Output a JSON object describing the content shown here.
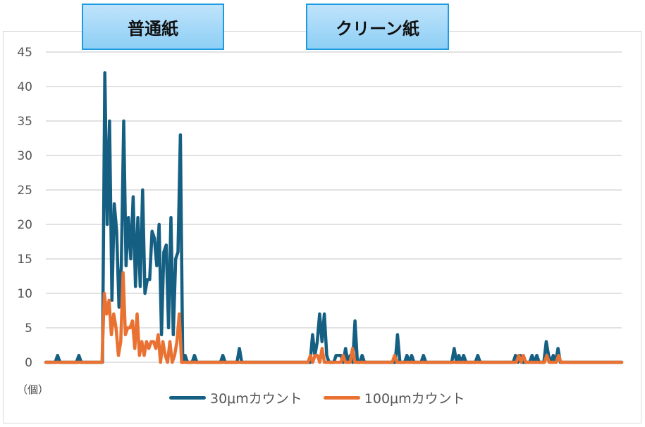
{
  "chart_data": {
    "type": "line",
    "ylabel": "（個）",
    "ylim": [
      0,
      45
    ],
    "yticks": [
      0,
      5,
      10,
      15,
      20,
      25,
      30,
      35,
      40,
      45
    ],
    "grid": true,
    "legend_position": "bottom",
    "section_labels": [
      "普通紙",
      "クリーン紙"
    ],
    "series": [
      {
        "name": "30μmカウント",
        "color": "#155f82",
        "values": [
          0,
          0,
          0,
          0,
          0,
          1,
          0,
          0,
          0,
          0,
          0,
          0,
          0,
          0,
          1,
          0,
          0,
          0,
          0,
          0,
          0,
          0,
          0,
          0,
          0,
          42,
          20,
          35,
          9,
          23,
          19,
          8,
          14,
          35,
          14,
          21,
          15,
          24,
          11,
          21,
          11,
          25,
          10,
          12,
          12,
          19,
          18,
          14,
          20,
          4,
          16,
          17,
          5,
          21,
          4,
          15,
          16,
          33,
          0,
          1,
          0,
          0,
          0,
          1,
          0,
          0,
          0,
          0,
          0,
          0,
          0,
          0,
          0,
          0,
          0,
          1,
          0,
          0,
          0,
          0,
          0,
          0,
          2,
          0,
          0,
          0,
          0,
          0,
          0,
          0,
          0,
          0,
          0,
          0,
          0,
          0,
          0,
          0,
          0,
          0,
          0,
          0,
          0,
          0,
          0,
          0,
          0,
          0,
          0,
          0,
          0,
          0,
          0,
          4,
          1,
          3,
          7,
          3,
          7,
          1,
          0,
          0,
          0,
          1,
          1,
          1,
          0,
          2,
          0,
          1,
          0,
          6,
          0,
          0,
          1,
          0,
          0,
          0,
          0,
          0,
          0,
          0,
          0,
          0,
          0,
          0,
          0,
          0,
          0,
          4,
          0,
          0,
          0,
          1,
          0,
          1,
          0,
          0,
          0,
          0,
          1,
          0,
          0,
          0,
          0,
          0,
          0,
          0,
          0,
          0,
          0,
          0,
          0,
          2,
          0,
          1,
          0,
          1,
          0,
          0,
          0,
          0,
          0,
          1,
          0,
          0,
          0,
          0,
          0,
          0,
          0,
          0,
          0,
          0,
          0,
          0,
          0,
          0,
          0,
          1,
          0,
          1,
          0,
          0,
          0,
          0,
          1,
          0,
          1,
          0,
          0,
          0,
          3,
          1,
          0,
          1,
          0,
          2,
          0,
          0,
          0,
          0,
          0,
          0,
          0,
          0,
          0,
          0,
          0,
          0,
          0,
          0,
          0,
          0,
          0,
          0,
          0,
          0,
          0,
          0,
          0,
          0,
          0,
          0,
          0
        ]
      },
      {
        "name": "100μmカウント",
        "color": "#e97132",
        "values": [
          0,
          0,
          0,
          0,
          0,
          0,
          0,
          0,
          0,
          0,
          0,
          0,
          0,
          0,
          0,
          0,
          0,
          0,
          0,
          0,
          0,
          0,
          0,
          0,
          0,
          10,
          7,
          9,
          4,
          7,
          5,
          1,
          3,
          13,
          4,
          5,
          5,
          6,
          2,
          7,
          1,
          3,
          1,
          3,
          2,
          3,
          3,
          2,
          4,
          0,
          3,
          1,
          0,
          3,
          0,
          1,
          3,
          7,
          0,
          0,
          0,
          0,
          0,
          0,
          0,
          0,
          0,
          0,
          0,
          0,
          0,
          0,
          0,
          0,
          0,
          0,
          0,
          0,
          0,
          0,
          0,
          0,
          0,
          0,
          0,
          0,
          0,
          0,
          0,
          0,
          0,
          0,
          0,
          0,
          0,
          0,
          0,
          0,
          0,
          0,
          0,
          0,
          0,
          0,
          0,
          0,
          0,
          0,
          0,
          0,
          0,
          0,
          0,
          1,
          0,
          1,
          1,
          0,
          2,
          0,
          0,
          0,
          0,
          0,
          0,
          0,
          0,
          1,
          0,
          0,
          0,
          2,
          0,
          0,
          0,
          0,
          0,
          0,
          0,
          0,
          0,
          0,
          0,
          0,
          0,
          0,
          0,
          0,
          0,
          1,
          0,
          0,
          0,
          0,
          0,
          0,
          0,
          0,
          0,
          0,
          0,
          0,
          0,
          0,
          0,
          0,
          0,
          0,
          0,
          0,
          0,
          0,
          0,
          0,
          0,
          0,
          0,
          0,
          0,
          0,
          0,
          0,
          0,
          0,
          0,
          0,
          0,
          0,
          0,
          0,
          0,
          0,
          0,
          0,
          0,
          0,
          0,
          0,
          0,
          0,
          0,
          0,
          1,
          0,
          1,
          0,
          0,
          0,
          0,
          0,
          0,
          0,
          0,
          0,
          1,
          0,
          0,
          0,
          0,
          1,
          0,
          0,
          0,
          0,
          0,
          0,
          0,
          0,
          0,
          0,
          0,
          0,
          0,
          0,
          0,
          0,
          0,
          0,
          0,
          0,
          0,
          0,
          0,
          0,
          0,
          0,
          0
        ]
      }
    ]
  }
}
